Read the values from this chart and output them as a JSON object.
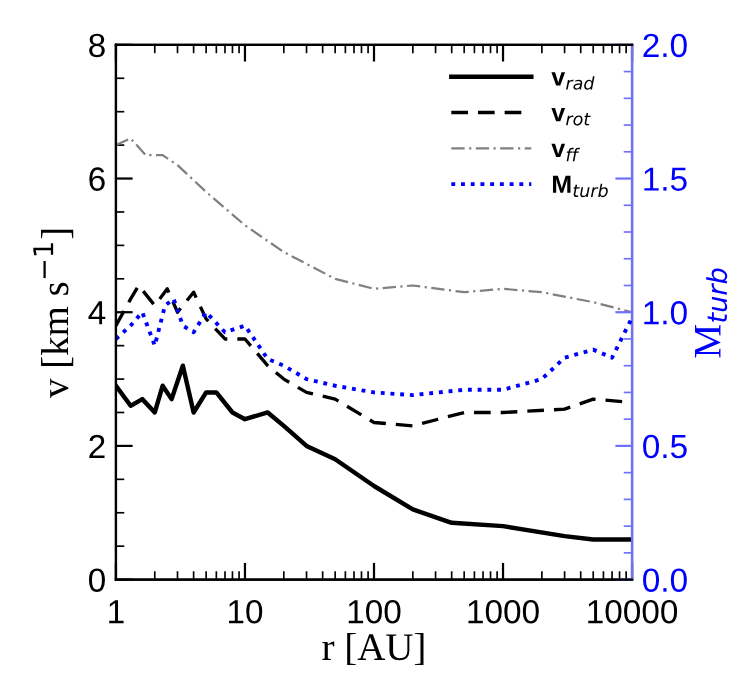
{
  "chart_data": {
    "type": "line",
    "xlabel": "r [AU]",
    "ylabel": "v [km s$^{−1}$]",
    "y2label": "M$_{turb}$",
    "log": "x",
    "xlim": [
      1,
      10000
    ],
    "xticks": [
      1,
      10,
      100,
      1000,
      10000
    ],
    "ylim": [
      0,
      8
    ],
    "yticks": [
      0,
      2,
      4,
      6,
      8
    ],
    "y2lim": [
      0,
      2
    ],
    "y2ticks": [
      {
        "value": 0,
        "label": "0.0"
      },
      {
        "value": 0.5,
        "label": "0.5"
      },
      {
        "value": 1,
        "label": "1.0"
      },
      {
        "value": 1.5,
        "label": "1.5"
      },
      {
        "value": 2,
        "label": "2.0"
      }
    ],
    "legend": "top right",
    "grid": false,
    "series": [
      {
        "name": "v$_{rad}$",
        "color": "#000000",
        "line_style": "solid",
        "x": [
          1,
          1.3,
          1.6,
          2,
          2.3,
          2.7,
          3.3,
          4,
          5,
          6,
          8,
          10,
          15,
          20,
          30,
          50,
          100,
          200,
          400,
          1000,
          3000,
          5000,
          10000
        ],
        "values": [
          2.9,
          2.6,
          2.7,
          2.5,
          2.9,
          2.7,
          3.2,
          2.5,
          2.8,
          2.8,
          2.5,
          2.4,
          2.5,
          2.3,
          2.0,
          1.8,
          1.4,
          1.05,
          0.85,
          0.8,
          0.65,
          0.6,
          0.6
        ]
      },
      {
        "name": "v$_{rot}$",
        "color": "#000000",
        "line_style": "dashed",
        "x": [
          1,
          1.3,
          1.5,
          2,
          2.5,
          3,
          4,
          5,
          7,
          10,
          15,
          20,
          30,
          50,
          100,
          200,
          500,
          1000,
          3000,
          5000,
          10000
        ],
        "values": [
          3.8,
          4.2,
          4.4,
          4.1,
          4.35,
          4.0,
          4.3,
          3.9,
          3.6,
          3.6,
          3.2,
          3.0,
          2.8,
          2.7,
          2.35,
          2.3,
          2.5,
          2.5,
          2.55,
          2.7,
          2.65
        ]
      },
      {
        "name": "v$_{ff}$",
        "color": "#808080",
        "line_style": "dashdot",
        "x": [
          1,
          1.3,
          1.7,
          2.3,
          3,
          5,
          10,
          20,
          50,
          100,
          200,
          500,
          1000,
          2000,
          5000,
          10000
        ],
        "values": [
          6.5,
          6.6,
          6.35,
          6.35,
          6.2,
          5.8,
          5.3,
          4.9,
          4.5,
          4.35,
          4.4,
          4.3,
          4.35,
          4.3,
          4.15,
          4.0
        ]
      },
      {
        "name": "M$_{turb}$",
        "color": "#0000ff",
        "line_style": "dotted",
        "axis": "y2",
        "x": [
          1,
          1.3,
          1.6,
          2,
          2.4,
          2.8,
          3.3,
          4,
          5,
          7,
          10,
          15,
          20,
          30,
          50,
          100,
          200,
          500,
          1000,
          2000,
          3000,
          5000,
          7000,
          10000
        ],
        "values": [
          0.9,
          0.95,
          1.0,
          0.875,
          1.025,
          1.05,
          0.95,
          0.925,
          1.0,
          0.925,
          0.95,
          0.825,
          0.8,
          0.75,
          0.725,
          0.7,
          0.69,
          0.71,
          0.71,
          0.75,
          0.83,
          0.86,
          0.83,
          0.98
        ]
      }
    ]
  }
}
